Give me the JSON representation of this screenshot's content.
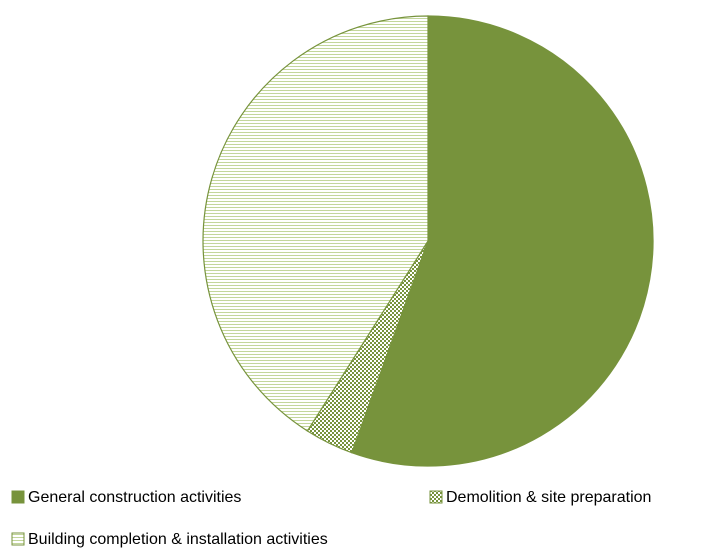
{
  "chart_data": {
    "type": "pie",
    "categories": [
      "General construction activities",
      "Demolition & site preparation",
      "Building completion & installation activities"
    ],
    "values": [
      55.5,
      3.5,
      41
    ],
    "color": "#77933c",
    "fills": [
      "solid",
      "checker",
      "hlines"
    ],
    "legend": "bottom"
  }
}
